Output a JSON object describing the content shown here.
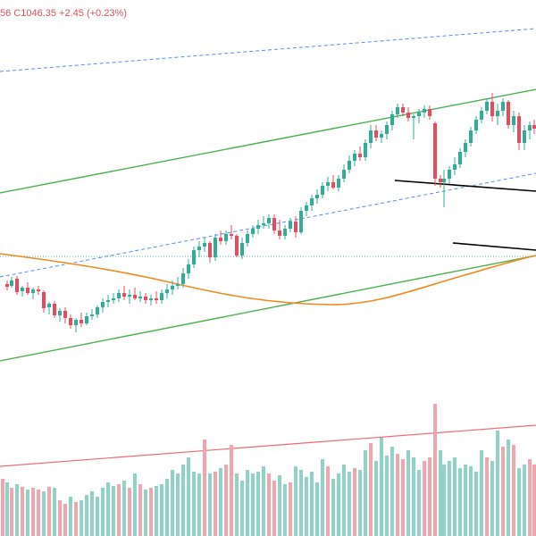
{
  "legend": {
    "ohlc_text": "56  C1046.35  +2.45 (+0.23%)"
  },
  "colors": {
    "up": "#2fae97",
    "down": "#ec4a5c",
    "volume_up": "#8fd3c6",
    "volume_down": "#f2a5ad",
    "channel": "#4caf50",
    "ma": "#f08a1e",
    "dashed": "#4f8ff0",
    "trendline": "#000000",
    "volume_trend": "#f06a72",
    "grid": "#eef0f3"
  },
  "chart_data": {
    "type": "candlestick",
    "title": "",
    "candles": [
      [
        8,
        318,
        325,
        314,
        321
      ],
      [
        13,
        320,
        322,
        310,
        314
      ],
      [
        19,
        312,
        330,
        309,
        327
      ],
      [
        25,
        326,
        332,
        320,
        322
      ],
      [
        31,
        322,
        330,
        316,
        328
      ],
      [
        37,
        328,
        335,
        322,
        324
      ],
      [
        43,
        324,
        330,
        320,
        326
      ],
      [
        49,
        327,
        350,
        325,
        345
      ],
      [
        55,
        344,
        352,
        338,
        340
      ],
      [
        61,
        340,
        356,
        337,
        353
      ],
      [
        67,
        353,
        360,
        345,
        348
      ],
      [
        73,
        348,
        362,
        344,
        356
      ],
      [
        79,
        356,
        368,
        352,
        364
      ],
      [
        85,
        364,
        372,
        356,
        358
      ],
      [
        91,
        358,
        366,
        350,
        362
      ],
      [
        97,
        362,
        364,
        350,
        354
      ],
      [
        103,
        354,
        358,
        346,
        352
      ],
      [
        109,
        352,
        356,
        342,
        344
      ],
      [
        115,
        344,
        350,
        334,
        338
      ],
      [
        121,
        338,
        344,
        330,
        336
      ],
      [
        127,
        336,
        340,
        328,
        334
      ],
      [
        133,
        334,
        338,
        324,
        328
      ],
      [
        139,
        328,
        336,
        320,
        332
      ],
      [
        145,
        332,
        340,
        324,
        330
      ],
      [
        151,
        330,
        336,
        322,
        334
      ],
      [
        157,
        334,
        338,
        326,
        332
      ],
      [
        163,
        332,
        340,
        328,
        336
      ],
      [
        169,
        336,
        342,
        330,
        334
      ],
      [
        175,
        334,
        340,
        326,
        336
      ],
      [
        181,
        336,
        340,
        324,
        328
      ],
      [
        187,
        328,
        334,
        318,
        324
      ],
      [
        193,
        324,
        330,
        314,
        320
      ],
      [
        199,
        320,
        324,
        310,
        318
      ],
      [
        205,
        318,
        322,
        300,
        306
      ],
      [
        211,
        306,
        312,
        290,
        296
      ],
      [
        217,
        296,
        300,
        276,
        280
      ],
      [
        223,
        280,
        288,
        270,
        276
      ],
      [
        229,
        276,
        282,
        266,
        272
      ],
      [
        235,
        272,
        294,
        270,
        288
      ],
      [
        241,
        288,
        292,
        262,
        266
      ],
      [
        247,
        266,
        274,
        258,
        270
      ],
      [
        253,
        270,
        274,
        258,
        262
      ],
      [
        259,
        262,
        268,
        252,
        264
      ],
      [
        265,
        264,
        288,
        262,
        286
      ],
      [
        271,
        286,
        290,
        266,
        272
      ],
      [
        277,
        272,
        276,
        258,
        262
      ],
      [
        283,
        262,
        266,
        252,
        256
      ],
      [
        289,
        256,
        262,
        246,
        252
      ],
      [
        295,
        252,
        256,
        242,
        250
      ],
      [
        301,
        250,
        256,
        240,
        244
      ],
      [
        307,
        244,
        262,
        240,
        258
      ],
      [
        313,
        258,
        268,
        246,
        264
      ],
      [
        319,
        264,
        268,
        252,
        256
      ],
      [
        325,
        256,
        260,
        244,
        248
      ],
      [
        331,
        248,
        266,
        242,
        260
      ],
      [
        337,
        260,
        262,
        232,
        236
      ],
      [
        343,
        236,
        242,
        226,
        230
      ],
      [
        349,
        230,
        236,
        218,
        222
      ],
      [
        355,
        222,
        228,
        212,
        218
      ],
      [
        361,
        218,
        222,
        204,
        208
      ],
      [
        367,
        208,
        214,
        198,
        204
      ],
      [
        373,
        204,
        212,
        196,
        210
      ],
      [
        379,
        210,
        214,
        196,
        200
      ],
      [
        385,
        200,
        204,
        184,
        190
      ],
      [
        391,
        190,
        194,
        174,
        180
      ],
      [
        397,
        180,
        186,
        168,
        172
      ],
      [
        403,
        172,
        180,
        164,
        176
      ],
      [
        409,
        176,
        180,
        156,
        160
      ],
      [
        415,
        160,
        166,
        140,
        146
      ],
      [
        421,
        146,
        158,
        140,
        154
      ],
      [
        427,
        154,
        160,
        146,
        150
      ],
      [
        433,
        150,
        156,
        136,
        140
      ],
      [
        439,
        140,
        146,
        124,
        128
      ],
      [
        445,
        128,
        132,
        116,
        120
      ],
      [
        451,
        120,
        130,
        116,
        126
      ],
      [
        457,
        126,
        136,
        120,
        132
      ],
      [
        463,
        132,
        156,
        128,
        130
      ],
      [
        469,
        130,
        138,
        122,
        126
      ],
      [
        475,
        126,
        132,
        118,
        122
      ],
      [
        481,
        122,
        134,
        118,
        130
      ],
      [
        487,
        138,
        208,
        136,
        200
      ],
      [
        493,
        200,
        210,
        196,
        204
      ],
      [
        497,
        204,
        232,
        190,
        200
      ],
      [
        503,
        200,
        206,
        186,
        190
      ],
      [
        509,
        190,
        196,
        176,
        184
      ],
      [
        515,
        184,
        188,
        166,
        170
      ],
      [
        521,
        170,
        176,
        156,
        160
      ],
      [
        527,
        160,
        164,
        142,
        146
      ],
      [
        533,
        146,
        150,
        130,
        134
      ],
      [
        539,
        134,
        138,
        120,
        124
      ],
      [
        545,
        124,
        128,
        110,
        114
      ],
      [
        551,
        114,
        136,
        104,
        130
      ],
      [
        557,
        130,
        140,
        116,
        124
      ],
      [
        563,
        124,
        130,
        110,
        114
      ],
      [
        569,
        114,
        144,
        112,
        140
      ],
      [
        575,
        140,
        148,
        124,
        130
      ],
      [
        581,
        130,
        168,
        126,
        160
      ],
      [
        587,
        160,
        168,
        140,
        146
      ],
      [
        593,
        146,
        156,
        136,
        140
      ],
      [
        598,
        140,
        150,
        134,
        144
      ]
    ],
    "volume": [
      [
        3,
        64
      ],
      [
        8,
        60
      ],
      [
        13,
        54
      ],
      [
        19,
        58
      ],
      [
        25,
        55
      ],
      [
        31,
        52
      ],
      [
        37,
        54
      ],
      [
        43,
        52
      ],
      [
        49,
        50
      ],
      [
        55,
        55
      ],
      [
        61,
        54
      ],
      [
        67,
        40
      ],
      [
        73,
        36
      ],
      [
        79,
        44
      ],
      [
        85,
        38
      ],
      [
        91,
        40
      ],
      [
        97,
        46
      ],
      [
        103,
        50
      ],
      [
        109,
        44
      ],
      [
        115,
        54
      ],
      [
        121,
        60
      ],
      [
        127,
        56
      ],
      [
        133,
        58
      ],
      [
        139,
        62
      ],
      [
        145,
        54
      ],
      [
        151,
        70
      ],
      [
        157,
        58
      ],
      [
        163,
        52
      ],
      [
        169,
        54
      ],
      [
        175,
        56
      ],
      [
        181,
        58
      ],
      [
        187,
        64
      ],
      [
        193,
        74
      ],
      [
        199,
        70
      ],
      [
        205,
        80
      ],
      [
        211,
        88
      ],
      [
        217,
        72
      ],
      [
        223,
        70
      ],
      [
        229,
        108
      ],
      [
        235,
        70
      ],
      [
        241,
        72
      ],
      [
        247,
        76
      ],
      [
        253,
        80
      ],
      [
        259,
        102
      ],
      [
        265,
        70
      ],
      [
        271,
        62
      ],
      [
        277,
        74
      ],
      [
        283,
        70
      ],
      [
        289,
        72
      ],
      [
        295,
        78
      ],
      [
        301,
        70
      ],
      [
        307,
        62
      ],
      [
        313,
        68
      ],
      [
        319,
        58
      ],
      [
        325,
        60
      ],
      [
        331,
        78
      ],
      [
        337,
        74
      ],
      [
        343,
        66
      ],
      [
        349,
        72
      ],
      [
        355,
        60
      ],
      [
        361,
        86
      ],
      [
        367,
        78
      ],
      [
        373,
        64
      ],
      [
        379,
        70
      ],
      [
        385,
        80
      ],
      [
        391,
        72
      ],
      [
        397,
        76
      ],
      [
        403,
        74
      ],
      [
        409,
        96
      ],
      [
        415,
        104
      ],
      [
        421,
        84
      ],
      [
        427,
        110
      ],
      [
        433,
        90
      ],
      [
        439,
        100
      ],
      [
        445,
        92
      ],
      [
        451,
        86
      ],
      [
        457,
        96
      ],
      [
        463,
        88
      ],
      [
        469,
        74
      ],
      [
        475,
        84
      ],
      [
        481,
        88
      ],
      [
        487,
        148
      ],
      [
        493,
        96
      ],
      [
        497,
        80
      ],
      [
        503,
        84
      ],
      [
        509,
        88
      ],
      [
        515,
        76
      ],
      [
        521,
        80
      ],
      [
        527,
        78
      ],
      [
        533,
        72
      ],
      [
        539,
        96
      ],
      [
        545,
        88
      ],
      [
        551,
        84
      ],
      [
        557,
        118
      ],
      [
        563,
        100
      ],
      [
        569,
        108
      ],
      [
        575,
        102
      ],
      [
        581,
        76
      ],
      [
        587,
        80
      ],
      [
        593,
        86
      ],
      [
        598,
        80
      ]
    ]
  }
}
